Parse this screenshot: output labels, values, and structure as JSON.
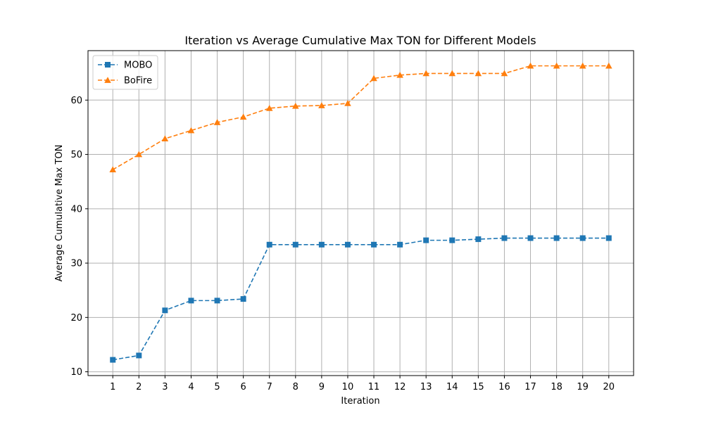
{
  "chart_data": {
    "type": "line",
    "title": "Iteration vs Average Cumulative Max TON for Different Models",
    "xlabel": "Iteration",
    "ylabel": "Average Cumulative Max TON",
    "x": [
      1,
      2,
      3,
      4,
      5,
      6,
      7,
      8,
      9,
      10,
      11,
      12,
      13,
      14,
      15,
      16,
      17,
      18,
      19,
      20
    ],
    "xlim": [
      0.05,
      20.95
    ],
    "ylim": [
      9.3,
      69.1
    ],
    "yticks": [
      10,
      20,
      30,
      40,
      50,
      60
    ],
    "grid": true,
    "legend_position": "top-left",
    "series": [
      {
        "name": "MOBO",
        "color": "#1f77b4",
        "marker": "square",
        "linestyle": "dashed",
        "values": [
          12.2,
          13.0,
          21.3,
          23.1,
          23.1,
          23.4,
          33.4,
          33.4,
          33.4,
          33.4,
          33.4,
          33.4,
          34.2,
          34.2,
          34.4,
          34.6,
          34.6,
          34.6,
          34.6,
          34.6
        ]
      },
      {
        "name": "BoFire",
        "color": "#ff7f0e",
        "marker": "triangle",
        "linestyle": "dashed",
        "values": [
          47.2,
          50.0,
          52.9,
          54.4,
          55.9,
          56.9,
          58.5,
          58.9,
          59.0,
          59.4,
          64.0,
          64.6,
          64.9,
          64.9,
          64.9,
          64.9,
          66.3,
          66.3,
          66.3,
          66.3
        ]
      }
    ]
  }
}
